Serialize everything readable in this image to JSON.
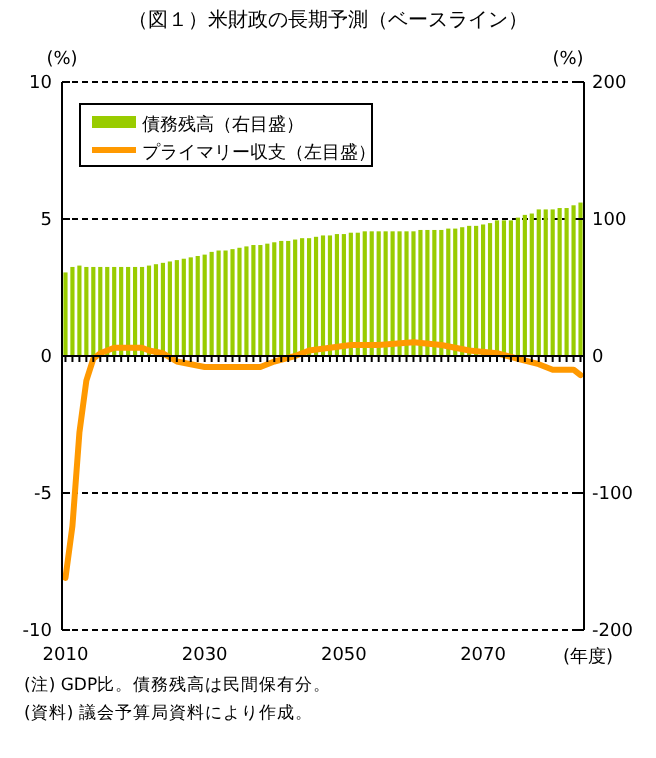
{
  "chart_data": {
    "type": "bar",
    "title": "（図１）米財政の長期予測（ベースライン）",
    "ylabel": "(%)",
    "y2label": "(%)",
    "xlabel": "(年度)",
    "x": [
      2010,
      2011,
      2012,
      2013,
      2014,
      2015,
      2016,
      2017,
      2018,
      2019,
      2020,
      2021,
      2022,
      2023,
      2024,
      2025,
      2026,
      2027,
      2028,
      2029,
      2030,
      2031,
      2032,
      2033,
      2034,
      2035,
      2036,
      2037,
      2038,
      2039,
      2040,
      2041,
      2042,
      2043,
      2044,
      2045,
      2046,
      2047,
      2048,
      2049,
      2050,
      2051,
      2052,
      2053,
      2054,
      2055,
      2056,
      2057,
      2058,
      2059,
      2060,
      2061,
      2062,
      2063,
      2064,
      2065,
      2066,
      2067,
      2068,
      2069,
      2070,
      2071,
      2072,
      2073,
      2074,
      2075,
      2076,
      2077,
      2078,
      2079,
      2080,
      2081,
      2082,
      2083,
      2084
    ],
    "series": [
      {
        "name": "債務残高（右目盛）",
        "axis": "y2",
        "color": "#99cc00",
        "values": [
          61,
          65,
          66,
          65,
          65,
          65,
          65,
          65,
          65,
          65,
          65,
          65,
          66,
          67,
          68,
          69,
          70,
          71,
          72,
          73,
          74,
          76,
          77,
          77,
          78,
          79,
          80,
          81,
          81,
          82,
          83,
          84,
          84,
          85,
          86,
          86,
          87,
          88,
          88,
          89,
          89,
          90,
          90,
          91,
          91,
          91,
          91,
          91,
          91,
          91,
          91,
          92,
          92,
          92,
          92,
          93,
          93,
          94,
          95,
          95,
          96,
          97,
          99,
          99,
          99,
          101,
          103,
          104,
          107,
          107,
          107,
          108,
          108,
          110,
          112
        ]
      },
      {
        "name": "プライマリー収支（左目盛）",
        "type": "line",
        "color": "#ff9900",
        "x": [
          2010,
          2011,
          2012,
          2013,
          2014,
          2015,
          2017,
          2021,
          2022,
          2024,
          2026,
          2030,
          2035,
          2038,
          2040,
          2043,
          2045,
          2048,
          2051,
          2055,
          2060,
          2064,
          2068,
          2072,
          2075,
          2078,
          2080,
          2083,
          2084
        ],
        "values": [
          -8.1,
          -6.2,
          -2.8,
          -0.9,
          -0.1,
          0.1,
          0.3,
          0.3,
          0.2,
          0.1,
          -0.2,
          -0.4,
          -0.4,
          -0.4,
          -0.2,
          0,
          0.2,
          0.3,
          0.4,
          0.4,
          0.5,
          0.4,
          0.2,
          0.1,
          -0.1,
          -0.3,
          -0.5,
          -0.5,
          -0.7
        ]
      }
    ],
    "xlim": [
      2009.5,
      2084.5
    ],
    "xticks": [
      2010,
      2030,
      2050,
      2070
    ],
    "ylim": [
      -10,
      10
    ],
    "yticks": [
      -10,
      -5,
      0,
      5,
      10
    ],
    "y2lim": [
      -200,
      200
    ],
    "y2ticks": [
      -200,
      -100,
      0,
      100,
      200
    ],
    "grid": "y",
    "legend": "top left",
    "annotations": [
      "(注) GDP比。債務残高は民間保有分。",
      "(資料) 議会予算局資料により作成。"
    ]
  }
}
